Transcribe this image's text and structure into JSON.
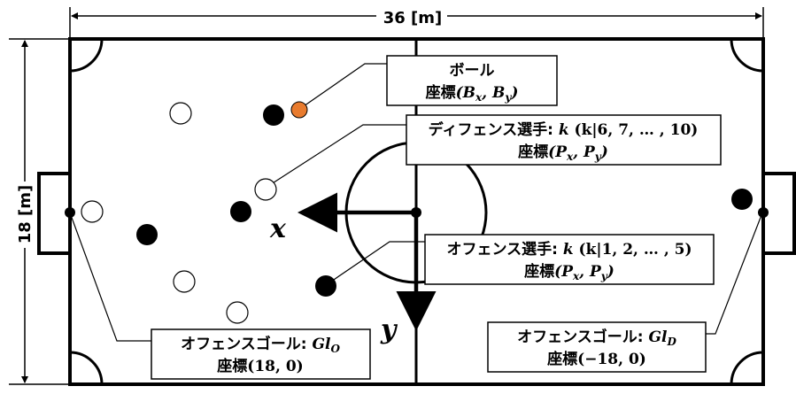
{
  "dimensions": {
    "width_label": "36 [m]",
    "height_label": "18 [m]"
  },
  "axes": {
    "x": "x",
    "y": "y"
  },
  "labels": {
    "ball": {
      "title": "ボール",
      "coord_prefix": "座標",
      "coord": "(B",
      "sub1": "x",
      "mid": ", B",
      "sub2": "y",
      "close": ")"
    },
    "defense": {
      "title": "ディフェンス選手: ",
      "k": "k",
      "k_range": " (k|6, 7, … , 10)",
      "coord_prefix": "座標",
      "coord": "(P",
      "sub1": "x",
      "mid": ", P",
      "sub2": "y",
      "close": ")"
    },
    "offense": {
      "title": "オフェンス選手: ",
      "k": "k",
      "k_range": " (k|1, 2, … , 5)",
      "coord_prefix": "座標",
      "coord": "(P",
      "sub1": "x",
      "mid": ", P",
      "sub2": "y",
      "close": ")"
    },
    "offense_goal": {
      "title": "オフェンスゴール: ",
      "gl": "Gl",
      "sub": "O",
      "coord_prefix": "座標",
      "coord": "(18, 0)"
    },
    "defense_goal": {
      "title": "オフェンスゴール: ",
      "gl": "Gl",
      "sub": "D",
      "coord_prefix": "座標",
      "coord": "(−18, 0)"
    }
  },
  "colors": {
    "line": "#000000",
    "player_offense": "#000000",
    "player_defense": "#ffffff",
    "ball": "#e87b2e"
  }
}
